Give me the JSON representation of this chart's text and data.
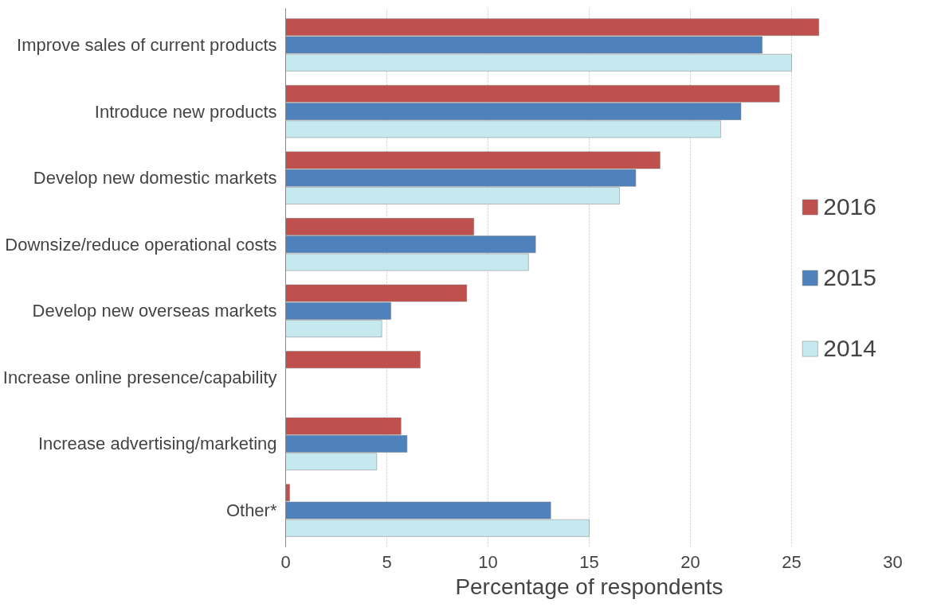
{
  "chart_data": {
    "type": "bar",
    "orientation": "horizontal",
    "xlabel": "Percentage of respondents",
    "categories": [
      "Improve sales of current products",
      "Introduce new products",
      "Develop new domestic markets",
      "Downsize/reduce operational costs",
      "Develop new overseas markets",
      "Increase online presence/capability",
      "Increase advertising/marketing",
      "Other*"
    ],
    "series": [
      {
        "name": "2016",
        "color": "#c0504d",
        "values": [
          26.35,
          24.4,
          18.5,
          9.3,
          8.95,
          6.65,
          5.7,
          0.2
        ]
      },
      {
        "name": "2015",
        "color": "#4f81bd",
        "values": [
          23.55,
          22.5,
          17.3,
          12.35,
          5.2,
          null,
          6.0,
          13.1
        ]
      },
      {
        "name": "2014",
        "color": "#c6e9f0",
        "values": [
          25.0,
          21.5,
          16.5,
          12.0,
          4.75,
          null,
          4.5,
          15.0
        ]
      }
    ],
    "xlim": [
      0,
      30
    ],
    "xticks": [
      0,
      5,
      10,
      15,
      20,
      25,
      30
    ],
    "grid": "x",
    "legend": "right"
  }
}
